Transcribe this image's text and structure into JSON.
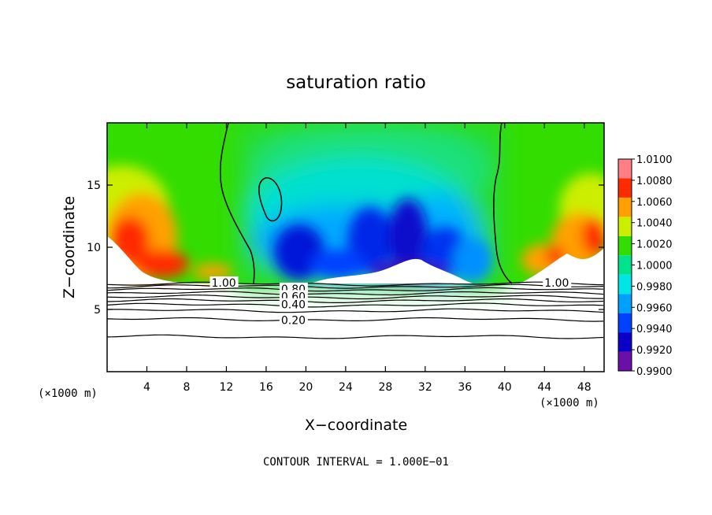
{
  "chart_data": {
    "type": "heatmap",
    "title": "saturation ratio",
    "xlabel": "X−coordinate",
    "ylabel": "Z−coordinate",
    "x_unit_left": "(×1000 m)",
    "x_unit_right": "(×1000 m)",
    "footer": "CONTOUR INTERVAL = 1.000E−01",
    "xlim": [
      0,
      50
    ],
    "ylim": [
      0,
      20
    ],
    "x_ticks": [
      4,
      8,
      12,
      16,
      20,
      24,
      28,
      32,
      36,
      40,
      44,
      48
    ],
    "y_ticks": [
      5,
      10,
      15
    ],
    "colorbar": {
      "levels": [
        "0.9900",
        "0.9920",
        "0.9940",
        "0.9960",
        "0.9980",
        "1.0000",
        "1.0020",
        "1.0040",
        "1.0060",
        "1.0080",
        "1.0100"
      ],
      "colors": [
        "#6a0fa8",
        "#0b00c8",
        "#0040ff",
        "#00a0ff",
        "#00e6e6",
        "#00e38c",
        "#33dd00",
        "#ccee00",
        "#ffa000",
        "#ff2a00",
        "#ff7f85"
      ]
    },
    "contour_labels": [
      {
        "text": "1.00",
        "x": 10.5,
        "z": 7.15
      },
      {
        "text": "1.00",
        "x": 44.0,
        "z": 7.15
      },
      {
        "text": "0.80",
        "x": 17.5,
        "z": 6.65
      },
      {
        "text": "0.60",
        "x": 17.5,
        "z": 6.05
      },
      {
        "text": "0.40",
        "x": 17.5,
        "z": 5.4
      },
      {
        "text": "0.20",
        "x": 17.5,
        "z": 4.15
      }
    ],
    "contour_levels": [
      1.0,
      0.9,
      0.8,
      0.7,
      0.6,
      0.5,
      0.4,
      0.3,
      0.2,
      0.1
    ],
    "contour_heights_km": [
      7.05,
      6.85,
      6.6,
      6.3,
      6.0,
      5.7,
      5.35,
      4.9,
      4.2,
      2.8
    ]
  }
}
